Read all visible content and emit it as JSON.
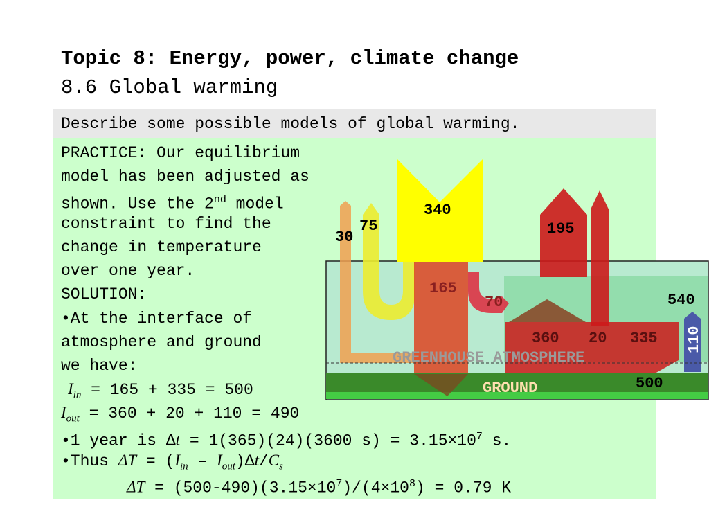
{
  "header": {
    "title": "Topic 8: Energy, power, climate change",
    "subtitle": "8.6 Global warming"
  },
  "objective": "Describe some possible models of global warming.",
  "body": {
    "lines": [
      "PRACTICE: Our equilibrium",
      "model has been adjusted as",
      "constraint to find the",
      "change in temperature",
      "over one year.",
      "SOLUTION:",
      "•At the interface of",
      "atmosphere and ground",
      "we have:"
    ],
    "line3_pre": "shown. Use the 2",
    "line3_sup": "nd",
    "line3_post": " model",
    "eq1": {
      "sym": "I",
      "sub": "in",
      "rest": " = 165 + 335 = 500"
    },
    "eq2": {
      "sym": "I",
      "sub": "out",
      "rest": " = 360 + 20 + 110 = 490"
    },
    "year": {
      "pre": "•1 year is ",
      "delta": "Δ",
      "t": "t",
      "mid": " = 1(365)(24)(3600 s) = 3.15×10",
      "exp": "7",
      "post": " s."
    },
    "thus": {
      "pre": "•Thus ",
      "dT": "ΔT",
      "eq": " = (",
      "I1": "I",
      "s1": "in",
      "minus": " – ",
      "I2": "I",
      "s2": "out",
      "close": ")Δ",
      "t": "t",
      "slash": "/",
      "C": "C",
      "cs": "s"
    },
    "final": {
      "dT": "ΔT",
      "pre": " = (500-490)(3.15×10",
      "exp1": "7",
      "mid": ")/(4×10",
      "exp2": "8",
      "post": ") = 0.79 K"
    }
  },
  "diagram": {
    "labels": {
      "v340": "340",
      "v30": "30",
      "v75": "75",
      "v195": "195",
      "v165": "165",
      "v70": "70",
      "v540": "540",
      "v360": "360",
      "v20": "20",
      "v335": "335",
      "v110": "110",
      "v500": "500"
    },
    "atmosphere_label": "GREENHOUSE ATMOSPHERE",
    "ground_label": "GROUND",
    "colors": {
      "solar": "#ffff00",
      "reflected": "#f0f040",
      "orange": "#f0a050",
      "red": "#cc1a1a",
      "atmosphere": "#9ee6c0",
      "ground": "#3a8a2a",
      "ground_stripe": "#44cc44",
      "blue": "#4a5aa8",
      "brown": "#8a4a2a"
    }
  }
}
